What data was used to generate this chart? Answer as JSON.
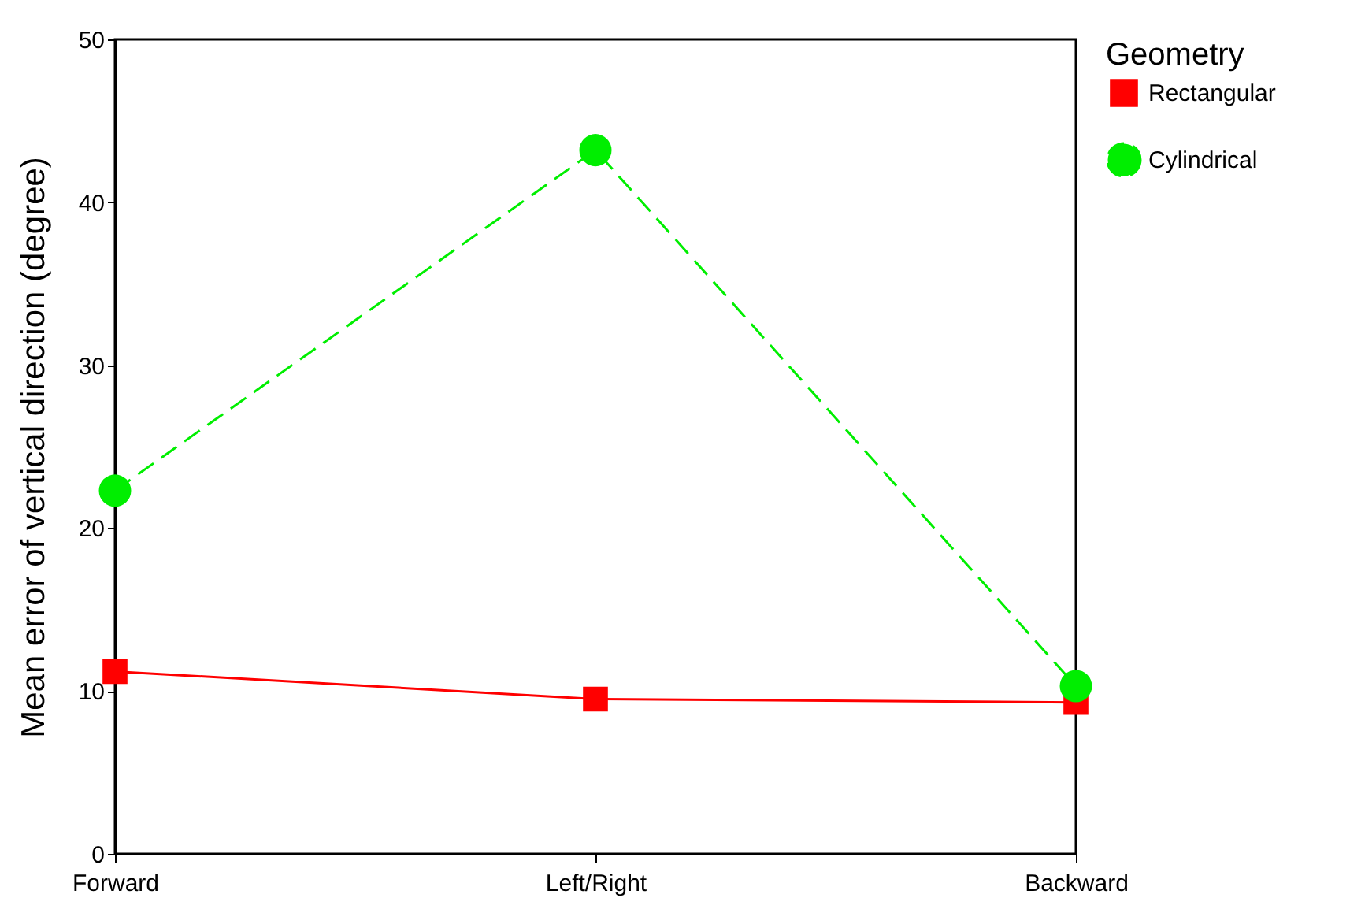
{
  "chart_data": {
    "type": "line",
    "ylabel": "Mean error of vertical direction (degree)",
    "legend_title": "Geometry",
    "legend": "right",
    "categories": [
      "Forward",
      "Left/Right",
      "Backward"
    ],
    "ylim": [
      0,
      50
    ],
    "yticks": [
      0,
      10,
      20,
      30,
      40,
      50
    ],
    "grid": false,
    "series": [
      {
        "name": "Rectangular",
        "color": "#ff0000",
        "values": [
          11.2,
          9.5,
          9.3
        ],
        "marker": "square",
        "line_style": "solid"
      },
      {
        "name": "Cylindrical",
        "color": "#00ee00",
        "values": [
          22.3,
          43.2,
          10.3
        ],
        "marker": "circle",
        "line_style": "dashed"
      }
    ]
  }
}
